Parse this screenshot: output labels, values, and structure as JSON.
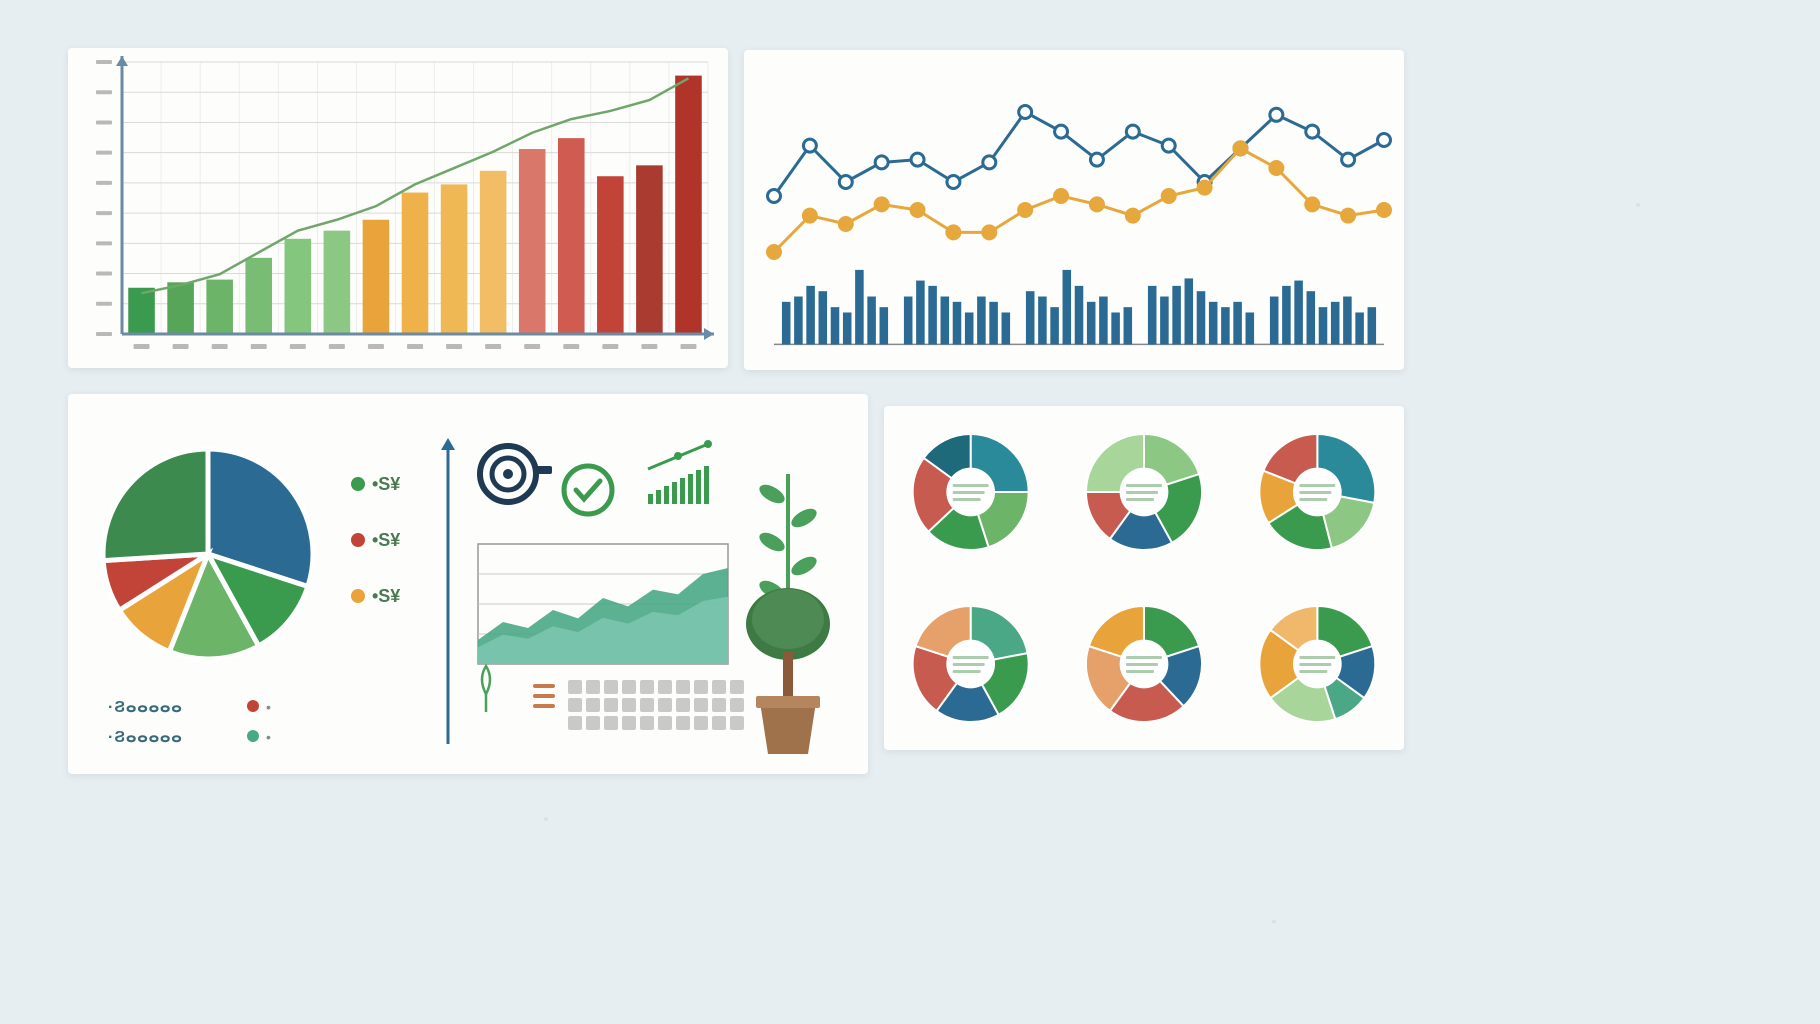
{
  "page_bg": "#e6eef2",
  "panel_bg": "#fdfdfb",
  "bar_chart": {
    "type": "bar+line",
    "grid_color": "#d9d9d9",
    "axis_color": "#6b8aa3",
    "xaxis_tick_color": "#b9b9b9",
    "ygrid_lines": 9,
    "values": [
      17,
      19,
      20,
      28,
      35,
      38,
      42,
      52,
      55,
      60,
      68,
      72,
      58,
      62,
      95
    ],
    "colors": [
      "#3a9a4e",
      "#56a559",
      "#6cb468",
      "#78bd73",
      "#85c67f",
      "#8cc884",
      "#e8a43a",
      "#efb24a",
      "#f0b755",
      "#f2bd64",
      "#d9776a",
      "#d05b50",
      "#c24438",
      "#a93b30",
      "#b1342b"
    ],
    "line_values": [
      15,
      18,
      22,
      30,
      38,
      42,
      47,
      55,
      61,
      67,
      74,
      79,
      82,
      86,
      94
    ],
    "line_color": "#6fa76a",
    "ylim": [
      0,
      100
    ]
  },
  "line_chart": {
    "type": "line+thin-bars",
    "bg": "#fdfdfb",
    "grid_line_color": "#e2e2e2",
    "series1": {
      "color": "#2b6a93",
      "marker_fill": "#ffffff",
      "marker_stroke": "#2b6a93",
      "values": [
        55,
        73,
        60,
        67,
        68,
        60,
        67,
        85,
        78,
        68,
        78,
        73,
        60,
        72,
        84,
        78,
        68,
        75
      ]
    },
    "series2": {
      "color": "#e6a83c",
      "marker_fill": "#e6a83c",
      "values": [
        35,
        48,
        45,
        52,
        50,
        42,
        42,
        50,
        55,
        52,
        48,
        55,
        58,
        72,
        65,
        52,
        48,
        50
      ]
    },
    "thin_bars": {
      "color": "#2b6a93",
      "groups": 5,
      "per_group": 9,
      "values": [
        [
          40,
          45,
          55,
          50,
          35,
          30,
          70,
          45,
          35
        ],
        [
          45,
          60,
          55,
          45,
          40,
          30,
          45,
          40,
          30
        ],
        [
          50,
          45,
          35,
          70,
          55,
          40,
          45,
          30,
          35
        ],
        [
          55,
          45,
          55,
          62,
          50,
          40,
          35,
          40,
          30
        ],
        [
          45,
          55,
          60,
          50,
          35,
          40,
          45,
          30,
          35
        ]
      ]
    },
    "ylim": [
      0,
      100
    ]
  },
  "infographic": {
    "pie": {
      "type": "pie",
      "slices": [
        {
          "value": 30,
          "color": "#2b6a93"
        },
        {
          "value": 12,
          "color": "#3a9a4e"
        },
        {
          "value": 14,
          "color": "#6cb468"
        },
        {
          "value": 10,
          "color": "#e8a43a"
        },
        {
          "value": 8,
          "color": "#c24438"
        },
        {
          "value": 26,
          "color": "#3d8a4f"
        }
      ],
      "gap_color": "#ffffff"
    },
    "legend_dots": [
      {
        "color": "#3a9a4e",
        "label": "•S¥"
      },
      {
        "color": "#c24438",
        "label": "•S¥"
      },
      {
        "color": "#e8a43a",
        "label": "•S¥"
      }
    ],
    "bottom_legend": [
      {
        "color": "#c24438",
        "label": "•"
      },
      {
        "color": "#4aa886",
        "label": "•"
      }
    ],
    "bottom_legend_text": "·Ϩⴰⴰⴰⴰⴰ",
    "area_chart": {
      "type": "area",
      "grid_color": "#c9c9c9",
      "colors": [
        "#4aa886",
        "#7fc8b1"
      ],
      "values": [
        20,
        35,
        30,
        45,
        38,
        55,
        48,
        62,
        58,
        75,
        80
      ],
      "ylim": [
        0,
        100
      ]
    },
    "icons": {
      "target_color": "#1f3a52",
      "check_color": "#3a9a4e",
      "bar_icon_color": "#3a9a4e",
      "tree_trunk": "#8a5a3a",
      "tree_leaf": "#3d7a44",
      "pot": "#a0724c",
      "sprout": "#4aa05a"
    },
    "calendar_grid": {
      "rows": 3,
      "cols": 10,
      "color": "#c9c9c9"
    }
  },
  "donuts": {
    "type": "donut-grid",
    "rows": 2,
    "cols": 3,
    "inner_radius_ratio": 0.42,
    "center_fill": "#ffffff",
    "center_text_color": "#5a9a5e",
    "charts": [
      {
        "slices": [
          {
            "v": 25,
            "c": "#2b8a9a"
          },
          {
            "v": 20,
            "c": "#6cb468"
          },
          {
            "v": 18,
            "c": "#3a9a4e"
          },
          {
            "v": 22,
            "c": "#c85b50"
          },
          {
            "v": 15,
            "c": "#1f6a7a"
          }
        ]
      },
      {
        "slices": [
          {
            "v": 20,
            "c": "#8cc884"
          },
          {
            "v": 22,
            "c": "#3a9a4e"
          },
          {
            "v": 18,
            "c": "#2b6a93"
          },
          {
            "v": 15,
            "c": "#c85b50"
          },
          {
            "v": 25,
            "c": "#a7d59a"
          }
        ]
      },
      {
        "slices": [
          {
            "v": 28,
            "c": "#2b8a9a"
          },
          {
            "v": 18,
            "c": "#8cc884"
          },
          {
            "v": 20,
            "c": "#3a9a4e"
          },
          {
            "v": 15,
            "c": "#e8a43a"
          },
          {
            "v": 19,
            "c": "#c85b50"
          }
        ]
      },
      {
        "slices": [
          {
            "v": 22,
            "c": "#4aa886"
          },
          {
            "v": 20,
            "c": "#3a9a4e"
          },
          {
            "v": 18,
            "c": "#2b6a93"
          },
          {
            "v": 20,
            "c": "#c85b50"
          },
          {
            "v": 20,
            "c": "#e6a06a"
          }
        ]
      },
      {
        "slices": [
          {
            "v": 20,
            "c": "#3a9a4e"
          },
          {
            "v": 18,
            "c": "#2b6a93"
          },
          {
            "v": 22,
            "c": "#c85b50"
          },
          {
            "v": 20,
            "c": "#e6a06a"
          },
          {
            "v": 20,
            "c": "#e8a43a"
          }
        ]
      },
      {
        "slices": [
          {
            "v": 20,
            "c": "#3a9a4e"
          },
          {
            "v": 15,
            "c": "#2b6a93"
          },
          {
            "v": 10,
            "c": "#4aa886"
          },
          {
            "v": 20,
            "c": "#a7d59a"
          },
          {
            "v": 20,
            "c": "#e8a43a"
          },
          {
            "v": 15,
            "c": "#efb86a"
          }
        ]
      }
    ]
  }
}
